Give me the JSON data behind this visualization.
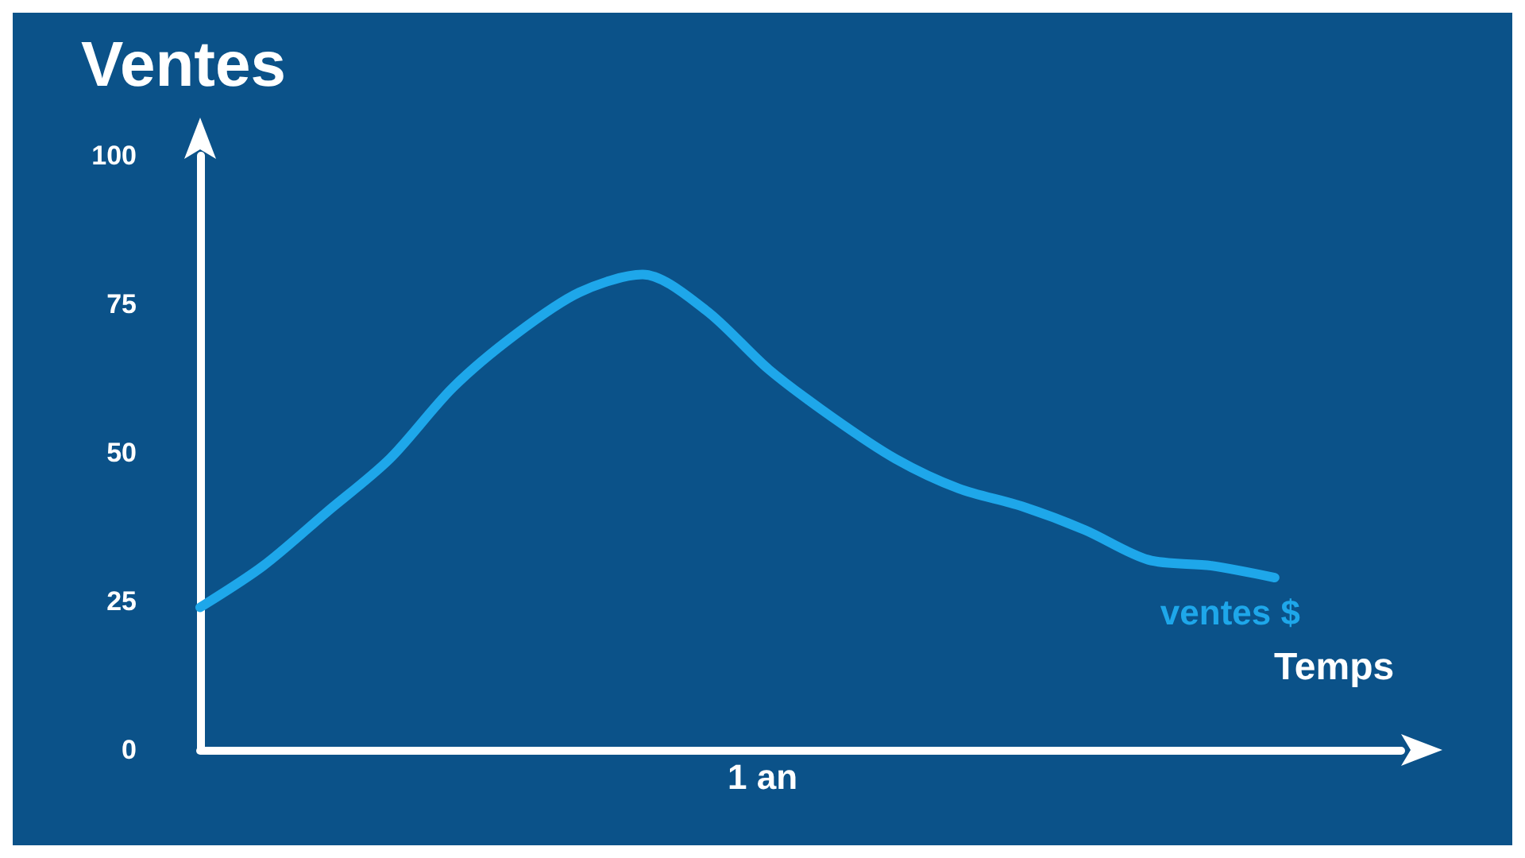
{
  "chart_data": {
    "type": "line",
    "ylabel": "Ventes",
    "xlabel": "Temps",
    "annotations": [
      "1 an"
    ],
    "categories": [
      null,
      null,
      null,
      null,
      null,
      null,
      null,
      null,
      null,
      null,
      null,
      null,
      null,
      null,
      null,
      null,
      null,
      null,
      null,
      null
    ],
    "series": [
      {
        "name": "ventes $",
        "color": "#1ea7ea",
        "values": [
          24,
          31,
          40,
          49,
          61,
          70,
          77,
          80,
          74,
          64,
          56,
          49,
          44,
          41,
          37,
          32,
          31,
          29,
          null,
          null
        ]
      }
    ],
    "ylim": [
      0,
      100
    ],
    "yticks": [
      0,
      25,
      50,
      75,
      100
    ],
    "grid": false,
    "legend": false,
    "marker": "none",
    "line_style": "solid"
  }
}
